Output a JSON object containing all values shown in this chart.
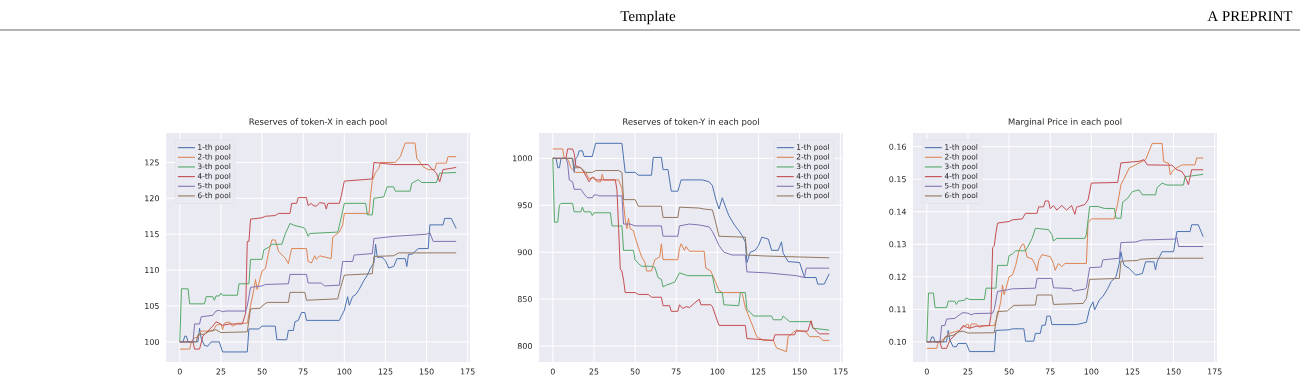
{
  "chart_data": [
    {
      "type": "line",
      "title": "Reserves of token-X in each pool",
      "annotations": [
        "Template",
        "A PREPRINT"
      ],
      "grid": true,
      "legend": "top left",
      "xlim": [
        -8.4,
        176.4
      ],
      "ylim": [
        97.2,
        129.1
      ],
      "xticks": [
        0,
        25,
        50,
        75,
        100,
        125,
        150,
        175
      ],
      "yticks": [
        100,
        105,
        110,
        115,
        120,
        125
      ],
      "series": [
        {
          "name": "1-th pool",
          "color": "#4c72b0",
          "x": [
            0,
            2,
            3,
            4,
            5,
            11,
            12,
            13,
            15,
            17,
            19,
            24,
            26,
            41,
            42,
            48,
            50,
            58,
            59,
            65,
            66,
            69,
            70,
            72,
            74,
            76,
            77,
            97,
            98,
            100,
            102,
            103,
            105,
            107,
            109,
            112,
            114,
            116,
            118,
            119,
            120,
            123,
            125,
            127,
            130,
            132,
            137,
            138,
            139,
            141,
            145,
            151,
            152,
            160,
            161,
            165,
            168
          ],
          "values": [
            100,
            100,
            100.8,
            100.8,
            100,
            100,
            101.9,
            100.5,
            99.5,
            99.4,
            100,
            100,
            98.6,
            98.6,
            101.8,
            101.8,
            102.2,
            102.2,
            100.3,
            100.3,
            101.6,
            101.6,
            102.8,
            103,
            104.1,
            104.1,
            103,
            103,
            103.5,
            104.4,
            106.3,
            105.1,
            106.3,
            106.6,
            107.3,
            108.6,
            109.3,
            110.3,
            111,
            113.6,
            111.8,
            111.8,
            111.3,
            110.3,
            110.5,
            111.6,
            111.6,
            110.5,
            112.2,
            112.2,
            113,
            113,
            116.3,
            116.3,
            117.2,
            117.2,
            115.8
          ]
        },
        {
          "name": "2-th pool",
          "color": "#dd8452",
          "x": [
            0,
            6,
            7,
            9,
            11,
            13,
            20,
            22,
            25,
            26,
            27,
            30,
            32,
            35,
            41,
            43,
            45,
            46,
            47,
            49,
            50,
            52,
            54,
            56,
            58,
            60,
            64,
            66,
            67,
            68,
            77,
            78,
            80,
            82,
            83,
            85,
            92,
            93,
            97,
            99,
            100,
            115,
            116,
            117,
            119,
            121,
            122,
            131,
            134,
            137,
            143,
            144,
            148,
            151,
            155,
            156,
            162,
            163,
            168
          ],
          "values": [
            99,
            99,
            100,
            100.6,
            100.6,
            101.5,
            101.5,
            102.3,
            102.5,
            101.7,
            102.6,
            102.8,
            102.2,
            102.6,
            102.6,
            105,
            107.3,
            108.7,
            107.3,
            109,
            109.9,
            110.2,
            112.5,
            114.2,
            114.2,
            112.6,
            111.7,
            110.9,
            112,
            113,
            113,
            111.2,
            111,
            112,
            111.5,
            112,
            111.6,
            114.6,
            115.3,
            116.3,
            117.9,
            117.9,
            120.5,
            122.5,
            123.6,
            124.2,
            125,
            125,
            125.8,
            127.7,
            127.7,
            125.6,
            124.4,
            124,
            124,
            124.9,
            124.9,
            125.8,
            125.8
          ]
        },
        {
          "name": "3-th pool",
          "color": "#55a868",
          "x": [
            0,
            1,
            5,
            6,
            15,
            16,
            20,
            21,
            22,
            24,
            25,
            26,
            35,
            36,
            42,
            43,
            50,
            51,
            54,
            56,
            62,
            64,
            67,
            70,
            74,
            76,
            78,
            79,
            96,
            98,
            100,
            113,
            114,
            117,
            118,
            124,
            126,
            130,
            131,
            140,
            141,
            145,
            147,
            156,
            158,
            168
          ],
          "values": [
            100,
            107.4,
            107.4,
            105.3,
            105.3,
            106.3,
            106.3,
            105.8,
            106.4,
            106.4,
            106.8,
            106.5,
            106.5,
            108.1,
            108.1,
            111.5,
            111.5,
            112.8,
            113.2,
            113.6,
            113.6,
            115,
            116.5,
            116.2,
            116,
            115.8,
            114.7,
            115.1,
            115.3,
            117.2,
            119.3,
            119.3,
            117.7,
            117.7,
            120,
            120.2,
            121.6,
            121.6,
            121,
            121,
            122.1,
            122.6,
            122.2,
            122.2,
            123.5,
            123.6
          ]
        },
        {
          "name": "4-th pool",
          "color": "#c44e52",
          "x": [
            0,
            8,
            9,
            12,
            14,
            17,
            20,
            22,
            24,
            26,
            30,
            38,
            40,
            41,
            42,
            43,
            47,
            50,
            52,
            58,
            60,
            67,
            68,
            71,
            72,
            77,
            78,
            80,
            81,
            83,
            85,
            88,
            89,
            90,
            97,
            98,
            100,
            117,
            118,
            130,
            151,
            152,
            156,
            158,
            160,
            168
          ],
          "values": [
            100,
            100,
            99,
            99,
            100.8,
            101.5,
            102.2,
            102.8,
            102.6,
            102.3,
            102.5,
            102.5,
            104,
            114,
            114,
            117.1,
            117.2,
            117.3,
            117.5,
            117.6,
            117.9,
            117.9,
            119.3,
            119.3,
            120.1,
            120.1,
            119,
            119.3,
            119,
            118.9,
            119.4,
            119.3,
            118.5,
            119.3,
            119.3,
            120.2,
            122.4,
            122.7,
            125,
            124.7,
            124.7,
            124.4,
            123.5,
            122.3,
            124,
            124.3
          ]
        },
        {
          "name": "5-th pool",
          "color": "#8172b3",
          "x": [
            0,
            8,
            9,
            12,
            13,
            20,
            22,
            24,
            26,
            28,
            40,
            41,
            43,
            50,
            52,
            66,
            67,
            77,
            78,
            86,
            88,
            97,
            99,
            105,
            106,
            117,
            118,
            130,
            150,
            152,
            154,
            168
          ],
          "values": [
            100,
            100,
            102.5,
            102.5,
            103.5,
            103.7,
            104.3,
            104.4,
            104.2,
            104.3,
            104.3,
            105,
            107.6,
            107.8,
            108,
            108.1,
            109.4,
            109.4,
            108.2,
            108.2,
            107.8,
            107.9,
            111.2,
            111.2,
            112.1,
            112.3,
            114.4,
            114.7,
            115,
            115.2,
            114,
            114
          ]
        },
        {
          "name": "6-th pool",
          "color": "#937860",
          "x": [
            0,
            10,
            11,
            15,
            18,
            22,
            25,
            41,
            43,
            49,
            50,
            53,
            66,
            67,
            76,
            77,
            96,
            97,
            100,
            117,
            118,
            130,
            133,
            168
          ],
          "values": [
            100,
            100,
            101,
            101.1,
            101.5,
            101.7,
            101.3,
            101.4,
            104.6,
            104.7,
            105,
            105.5,
            105.5,
            106.9,
            106.9,
            105.8,
            106,
            107,
            109.3,
            109.5,
            111.9,
            112,
            112.4,
            112.4
          ]
        }
      ]
    },
    {
      "type": "line",
      "title": "Reserves of token-Y in each pool",
      "grid": true,
      "legend": "top right",
      "xlim": [
        -8.4,
        176.4
      ],
      "ylim": [
        783,
        1027
      ],
      "xticks": [
        0,
        25,
        50,
        75,
        100,
        125,
        150,
        175
      ],
      "yticks": [
        800,
        850,
        900,
        950,
        1000
      ],
      "series": [
        {
          "name": "1-th pool",
          "color": "#4c72b0",
          "x": [
            0,
            2,
            3,
            4,
            5,
            12,
            13,
            14,
            15,
            16,
            18,
            19,
            24,
            26,
            42,
            44,
            50,
            52,
            60,
            61,
            66,
            67,
            70,
            72,
            76,
            78,
            91,
            95,
            97,
            99,
            101,
            103,
            105,
            107,
            110,
            113,
            115,
            117,
            118,
            120,
            123,
            125,
            127,
            131,
            133,
            137,
            139,
            140,
            143,
            150,
            153,
            160,
            161,
            165,
            168
          ],
          "values": [
            1000,
            1000,
            990,
            990,
            1000,
            1000,
            985,
            1000,
            1002,
            1008,
            1008,
            1002,
            1002,
            1016,
            1016,
            985,
            985,
            982,
            982,
            1001,
            1001,
            988,
            988,
            965,
            965,
            977,
            977,
            975,
            971,
            957,
            946,
            958,
            948,
            939,
            930,
            923,
            918,
            911,
            889,
            900,
            902,
            907,
            916,
            914,
            902,
            902,
            911,
            899,
            890,
            889,
            873,
            873,
            866,
            866,
            877
          ]
        },
        {
          "name": "2-th pool",
          "color": "#dd8452",
          "x": [
            0,
            6,
            7,
            9,
            10,
            11,
            14,
            20,
            22,
            25,
            27,
            29,
            30,
            31,
            40,
            42,
            44,
            45,
            46,
            47,
            49,
            50,
            52,
            54,
            56,
            57,
            60,
            62,
            65,
            66,
            67,
            76,
            77,
            78,
            80,
            81,
            83,
            92,
            93,
            96,
            99,
            101,
            103,
            115,
            117,
            120,
            122,
            124,
            128,
            134,
            136,
            142,
            143,
            148,
            154,
            156,
            162,
            164,
            168
          ],
          "values": [
            1010,
            1010,
            1000,
            999,
            995,
            990,
            985,
            985,
            978,
            980,
            975,
            975,
            983,
            977,
            977,
            968,
            935,
            925,
            936,
            925,
            923,
            916,
            905,
            895,
            889,
            880,
            880,
            892,
            895,
            909,
            892,
            892,
            904,
            909,
            902,
            906,
            901,
            901,
            883,
            880,
            868,
            859,
            857,
            857,
            841,
            828,
            819,
            810,
            806,
            806,
            798,
            794,
            810,
            817,
            815,
            810,
            810,
            806,
            806
          ]
        },
        {
          "name": "3-th pool",
          "color": "#55a868",
          "x": [
            0,
            1,
            3,
            4,
            5,
            12,
            13,
            17,
            18,
            19,
            23,
            24,
            25,
            35,
            36,
            42,
            43,
            49,
            50,
            52,
            54,
            60,
            62,
            64,
            66,
            67,
            69,
            74,
            77,
            82,
            97,
            99,
            103,
            104,
            113,
            114,
            117,
            118,
            120,
            122,
            133,
            134,
            139,
            140,
            144,
            157,
            158,
            168
          ],
          "values": [
            1000,
            932,
            932,
            950,
            952,
            952,
            943,
            943,
            948,
            943,
            943,
            939,
            942,
            942,
            928,
            928,
            902,
            902,
            892,
            888,
            885,
            885,
            884,
            873,
            871,
            863,
            865,
            868,
            878,
            875,
            875,
            857,
            857,
            844,
            843,
            857,
            857,
            839,
            836,
            832,
            832,
            828,
            828,
            832,
            826,
            826,
            819,
            817
          ]
        },
        {
          "name": "4-th pool",
          "color": "#c44e52",
          "x": [
            0,
            8,
            9,
            12,
            13,
            14,
            17,
            19,
            22,
            24,
            26,
            38,
            39,
            40,
            41,
            42,
            43,
            44,
            50,
            52,
            58,
            60,
            66,
            67,
            71,
            72,
            76,
            77,
            79,
            81,
            83,
            89,
            90,
            96,
            97,
            99,
            101,
            117,
            118,
            134,
            135,
            147,
            148,
            155,
            157,
            158,
            162,
            168
          ],
          "values": [
            1000,
            1000,
            1010,
            1010,
            1005,
            992,
            990,
            985,
            975,
            980,
            977,
            977,
            966,
            925,
            882,
            880,
            870,
            857,
            857,
            855,
            855,
            852,
            852,
            843,
            843,
            837,
            837,
            844,
            840,
            842,
            841,
            850,
            844,
            844,
            842,
            832,
            822,
            822,
            808,
            806,
            812,
            812,
            816,
            816,
            827,
            820,
            813,
            813
          ]
        },
        {
          "name": "5-th pool",
          "color": "#8172b3",
          "x": [
            0,
            8,
            9,
            10,
            12,
            13,
            17,
            19,
            21,
            24,
            25,
            27,
            28,
            42,
            43,
            47,
            50,
            66,
            67,
            76,
            77,
            83,
            89,
            95,
            97,
            99,
            101,
            104,
            109,
            117,
            118,
            130,
            148,
            153,
            154,
            168
          ],
          "values": [
            1000,
            1000,
            995,
            977,
            975,
            967,
            967,
            962,
            958,
            958,
            961,
            961,
            960,
            960,
            930,
            930,
            928,
            928,
            917,
            917,
            928,
            930,
            929,
            927,
            922,
            915,
            907,
            900,
            897,
            897,
            879,
            878,
            875,
            873,
            883,
            883
          ]
        },
        {
          "name": "6-th pool",
          "color": "#937860",
          "x": [
            0,
            12,
            13,
            17,
            20,
            24,
            26,
            40,
            42,
            43,
            50,
            52,
            66,
            67,
            76,
            77,
            89,
            92,
            97,
            99,
            101,
            117,
            118,
            128,
            168
          ],
          "values": [
            1000,
            1000,
            990,
            990,
            985,
            985,
            987,
            987,
            985,
            956,
            956,
            949,
            949,
            937,
            937,
            948,
            947,
            946,
            945,
            932,
            917,
            916,
            897,
            896,
            894
          ]
        }
      ]
    },
    {
      "type": "line",
      "title": "Marginal Price in each pool",
      "grid": true,
      "legend": "top left",
      "xlim": [
        -8.4,
        176.4
      ],
      "ylim": [
        0.0938,
        0.1642
      ],
      "xticks": [
        0,
        25,
        50,
        75,
        100,
        125,
        150,
        175
      ],
      "yticks": [
        {
          "value": 0.1,
          "label": "0.10"
        },
        0.11,
        0.12,
        0.13,
        0.14,
        0.15,
        0.16
      ],
      "series": [
        {
          "name": "1-th pool",
          "color": "#4c72b0",
          "x": [
            0,
            2,
            3,
            4,
            5,
            12,
            13,
            14,
            16,
            18,
            19,
            24,
            26,
            41,
            42,
            50,
            52,
            59,
            60,
            65,
            66,
            69,
            70,
            72,
            73,
            75,
            76,
            91,
            97,
            99,
            101,
            102,
            105,
            107,
            110,
            112,
            115,
            117,
            118,
            119,
            120,
            123,
            127,
            131,
            133,
            138,
            139,
            140,
            143,
            150,
            152,
            160,
            161,
            165,
            168
          ],
          "values": [
            0.1,
            0.1,
            0.1015,
            0.1015,
            0.1,
            0.1,
            0.1035,
            0.1005,
            0.0985,
            0.0985,
            0.0995,
            0.0995,
            0.097,
            0.097,
            0.1035,
            0.1037,
            0.104,
            0.104,
            0.1002,
            0.1002,
            0.1026,
            0.1026,
            0.1051,
            0.1051,
            0.1079,
            0.1079,
            0.1053,
            0.1053,
            0.106,
            0.1103,
            0.1123,
            0.1098,
            0.113,
            0.1139,
            0.1164,
            0.1185,
            0.12,
            0.1241,
            0.1277,
            0.125,
            0.1235,
            0.1226,
            0.1205,
            0.121,
            0.1246,
            0.1246,
            0.1221,
            0.1246,
            0.1277,
            0.1277,
            0.1339,
            0.1339,
            0.136,
            0.136,
            0.1323
          ]
        },
        {
          "name": "2-th pool",
          "color": "#dd8452",
          "x": [
            0,
            6,
            7,
            9,
            11,
            13,
            20,
            22,
            25,
            26,
            27,
            30,
            32,
            35,
            41,
            43,
            45,
            46,
            47,
            49,
            50,
            52,
            54,
            56,
            58,
            59,
            61,
            64,
            66,
            67,
            68,
            70,
            75,
            77,
            78,
            80,
            82,
            84,
            97,
            98,
            100,
            114,
            116,
            118,
            120,
            123,
            133,
            135,
            137,
            143,
            144,
            147,
            148,
            150,
            155,
            163,
            164,
            168
          ],
          "values": [
            0.098,
            0.098,
            0.1,
            0.1005,
            0.101,
            0.1025,
            0.1035,
            0.1045,
            0.1055,
            0.104,
            0.1055,
            0.1055,
            0.1045,
            0.105,
            0.105,
            0.108,
            0.1125,
            0.1175,
            0.1145,
            0.118,
            0.12,
            0.1205,
            0.1235,
            0.128,
            0.13,
            0.13,
            0.126,
            0.1255,
            0.1235,
            0.1218,
            0.125,
            0.1268,
            0.1262,
            0.1241,
            0.122,
            0.1241,
            0.1231,
            0.1241,
            0.1241,
            0.1366,
            0.1378,
            0.1378,
            0.1425,
            0.1483,
            0.1503,
            0.1534,
            0.156,
            0.1585,
            0.161,
            0.161,
            0.1554,
            0.1549,
            0.1513,
            0.1529,
            0.1544,
            0.1544,
            0.1565,
            0.1565
          ]
        },
        {
          "name": "3-th pool",
          "color": "#55a868",
          "x": [
            0,
            1,
            4,
            5,
            12,
            13,
            17,
            18,
            19,
            23,
            24,
            26,
            35,
            36,
            42,
            43,
            49,
            50,
            52,
            54,
            60,
            62,
            64,
            66,
            74,
            76,
            77,
            79,
            96,
            97,
            99,
            104,
            108,
            114,
            115,
            118,
            119,
            122,
            125,
            129,
            131,
            139,
            140,
            143,
            146,
            156,
            157,
            161,
            168
          ],
          "values": [
            0.1,
            0.115,
            0.115,
            0.1105,
            0.1105,
            0.1125,
            0.1125,
            0.1115,
            0.1125,
            0.1128,
            0.1135,
            0.113,
            0.113,
            0.1165,
            0.1165,
            0.1235,
            0.1235,
            0.1265,
            0.127,
            0.128,
            0.128,
            0.1298,
            0.1318,
            0.1349,
            0.1345,
            0.133,
            0.131,
            0.1318,
            0.1318,
            0.133,
            0.1416,
            0.1416,
            0.141,
            0.141,
            0.138,
            0.138,
            0.1429,
            0.1441,
            0.1462,
            0.1467,
            0.1452,
            0.1452,
            0.1474,
            0.1488,
            0.1482,
            0.1482,
            0.1508,
            0.151,
            0.1515
          ]
        },
        {
          "name": "4-th pool",
          "color": "#c44e52",
          "x": [
            0,
            8,
            9,
            12,
            14,
            17,
            20,
            22,
            24,
            26,
            30,
            38,
            39,
            40,
            41,
            42,
            43,
            50,
            52,
            58,
            60,
            67,
            68,
            71,
            72,
            74,
            75,
            77,
            79,
            82,
            85,
            88,
            90,
            91,
            96,
            98,
            100,
            116,
            118,
            129,
            132,
            134,
            149,
            152,
            155,
            157,
            159,
            161,
            168
          ],
          "values": [
            0.1,
            0.1,
            0.098,
            0.098,
            0.1005,
            0.102,
            0.1035,
            0.105,
            0.1045,
            0.1042,
            0.1048,
            0.105,
            0.108,
            0.129,
            0.1295,
            0.1335,
            0.1365,
            0.137,
            0.1375,
            0.1378,
            0.1395,
            0.1395,
            0.1415,
            0.1415,
            0.1433,
            0.1433,
            0.1409,
            0.1419,
            0.1405,
            0.1419,
            0.1405,
            0.1419,
            0.1392,
            0.1414,
            0.1422,
            0.1436,
            0.1488,
            0.149,
            0.155,
            0.1555,
            0.156,
            0.1544,
            0.1543,
            0.1529,
            0.1524,
            0.1508,
            0.1483,
            0.1529,
            0.1529
          ]
        },
        {
          "name": "5-th pool",
          "color": "#8172b3",
          "x": [
            0,
            8,
            9,
            11,
            12,
            17,
            19,
            22,
            25,
            27,
            29,
            40,
            41,
            43,
            47,
            49,
            52,
            66,
            67,
            76,
            77,
            88,
            89,
            96,
            97,
            99,
            106,
            107,
            117,
            118,
            127,
            131,
            151,
            152,
            153,
            168
          ],
          "values": [
            0.1,
            0.1,
            0.105,
            0.105,
            0.107,
            0.1072,
            0.108,
            0.109,
            0.1088,
            0.1083,
            0.1087,
            0.1088,
            0.11,
            0.1155,
            0.1158,
            0.116,
            0.1163,
            0.1165,
            0.1195,
            0.1195,
            0.1166,
            0.1164,
            0.1156,
            0.1162,
            0.1166,
            0.1228,
            0.123,
            0.1252,
            0.1257,
            0.1305,
            0.1307,
            0.1313,
            0.1316,
            0.1321,
            0.1293,
            0.1293
          ]
        },
        {
          "name": "6-th pool",
          "color": "#937860",
          "x": [
            0,
            10,
            11,
            16,
            19,
            22,
            25,
            41,
            43,
            49,
            50,
            53,
            66,
            67,
            76,
            77,
            95,
            97,
            99,
            117,
            118,
            128,
            130,
            140,
            168
          ],
          "values": [
            0.1,
            0.1,
            0.1015,
            0.102,
            0.103,
            0.1033,
            0.1027,
            0.1028,
            0.1093,
            0.1095,
            0.11,
            0.1112,
            0.1113,
            0.1144,
            0.1144,
            0.1115,
            0.1118,
            0.1133,
            0.1192,
            0.1195,
            0.1248,
            0.125,
            0.1254,
            0.1257,
            0.1257
          ]
        }
      ]
    }
  ]
}
